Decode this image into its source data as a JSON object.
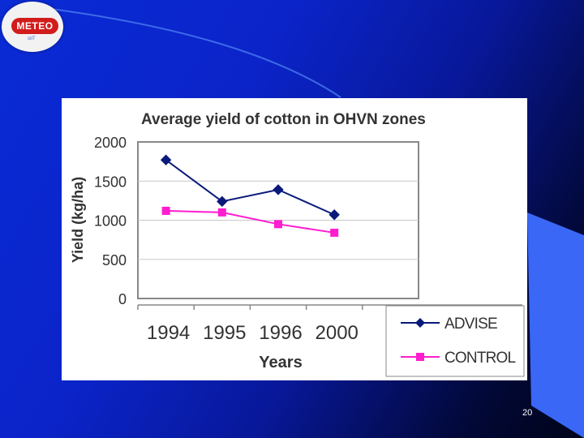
{
  "slide_number": "20",
  "logo": {
    "text": "METEO",
    "sub": "stiT"
  },
  "colors": {
    "advise": "#0a1a7a",
    "control": "#ff1dd0",
    "background_accent": "#3a67f5"
  },
  "chart_data": {
    "type": "line",
    "title": "Average yield of cotton in OHVN zones",
    "xlabel": "Years",
    "ylabel": "Yield (kg/ha)",
    "categories": [
      "1994",
      "1995",
      "1996",
      "2000"
    ],
    "ylim": [
      0,
      2000
    ],
    "yticks": [
      "0",
      "500",
      "1000",
      "1500",
      "2000"
    ],
    "grid": true,
    "legend_position": "bottom-right",
    "series": [
      {
        "name": "ADVISE",
        "values": [
          1770,
          1240,
          1390,
          1070
        ],
        "marker": "diamond",
        "color": "#0a1a7a"
      },
      {
        "name": "CONTROL",
        "values": [
          1120,
          1100,
          950,
          840
        ],
        "marker": "square",
        "color": "#ff1dd0"
      }
    ]
  }
}
